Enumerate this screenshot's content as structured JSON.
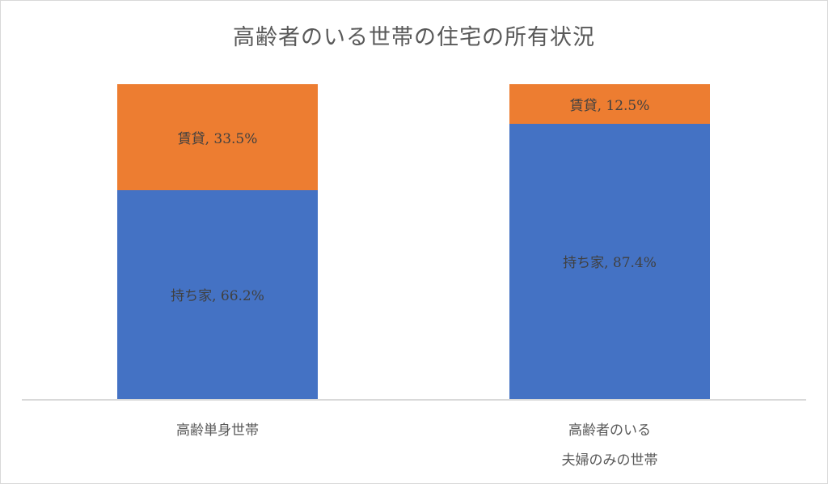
{
  "chart_data": {
    "type": "bar",
    "stacked": true,
    "title": "高齢者のいる世帯の住宅の所有状況",
    "categories": [
      "高齢単身世帯",
      "高齢者のいる\n夫婦のみの世帯"
    ],
    "category_lines": [
      [
        "高齢単身世帯"
      ],
      [
        "高齢者のいる",
        "夫婦のみの世帯"
      ]
    ],
    "series": [
      {
        "name": "持ち家",
        "color": "#4472c4",
        "values": [
          66.2,
          87.4
        ]
      },
      {
        "name": "賃貸",
        "color": "#ed7d31",
        "values": [
          33.5,
          12.5
        ]
      }
    ],
    "labels": [
      {
        "owned": "持ち家, 66.2%",
        "rented": "賃貸, 33.5%"
      },
      {
        "owned": "持ち家, 87.4%",
        "rented": "賃貸, 12.5%"
      }
    ],
    "xlabel": "",
    "ylabel": "",
    "ylim": [
      0,
      100
    ],
    "grid": false,
    "legend": "none"
  }
}
